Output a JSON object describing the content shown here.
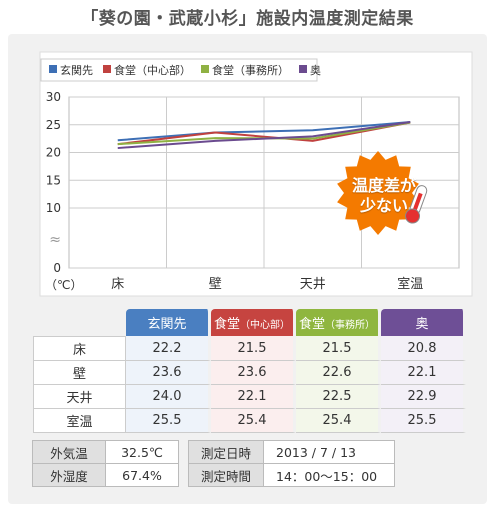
{
  "page": {
    "title": "「葵の園・武蔵小杉」施設内温度測定結果"
  },
  "badge": {
    "line1": "温度差が",
    "line2": "少ない",
    "color": "#f47a00"
  },
  "chart_data": {
    "type": "line",
    "categories": [
      "床",
      "壁",
      "天井",
      "室温"
    ],
    "series": [
      {
        "name": "玄関先",
        "color": "#3d6fb5",
        "values": [
          22.2,
          23.6,
          24.0,
          25.5
        ]
      },
      {
        "name": "食堂（中心部）",
        "color": "#c0413f",
        "values": [
          21.5,
          23.6,
          22.1,
          25.4
        ]
      },
      {
        "name": "食堂（事務所）",
        "color": "#8fb143",
        "values": [
          21.5,
          22.6,
          22.5,
          25.4
        ]
      },
      {
        "name": "奥",
        "color": "#6b4b8f",
        "values": [
          20.8,
          22.1,
          22.9,
          25.5
        ]
      }
    ],
    "yticks": [
      0,
      10,
      15,
      20,
      25,
      30
    ],
    "ylim": [
      0,
      30
    ],
    "axis_break": true,
    "ylabel": "（℃）",
    "grid": true,
    "legend": "top-left"
  },
  "table": {
    "headers": [
      {
        "main": "玄関先",
        "sub": "",
        "color": "#4a7fc1",
        "tint": "#eef3fa"
      },
      {
        "main": "食堂",
        "sub": "（中心部）",
        "color": "#c64440",
        "tint": "#fbeeee"
      },
      {
        "main": "食堂",
        "sub": "（事務所）",
        "color": "#8fb63f",
        "tint": "#f3f7ea"
      },
      {
        "main": "奥",
        "sub": "",
        "color": "#6e4f96",
        "tint": "#f3f0f7"
      }
    ],
    "rows": [
      {
        "label": "床",
        "values": [
          "22.2",
          "21.5",
          "21.5",
          "20.8"
        ]
      },
      {
        "label": "壁",
        "values": [
          "23.6",
          "23.6",
          "22.6",
          "22.1"
        ]
      },
      {
        "label": "天井",
        "values": [
          "24.0",
          "22.1",
          "22.5",
          "22.9"
        ]
      },
      {
        "label": "室温",
        "values": [
          "25.5",
          "25.4",
          "25.4",
          "25.5"
        ]
      }
    ]
  },
  "conditions": {
    "outside_temp_label": "外気温",
    "outside_temp": "32.5℃",
    "outside_humidity_label": "外湿度",
    "outside_humidity": "67.4%",
    "date_label": "測定日時",
    "date": "2013 / 7 / 13",
    "time_label": "測定時間",
    "time": "14：00〜15：00"
  }
}
